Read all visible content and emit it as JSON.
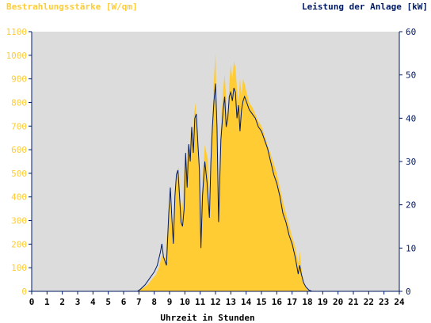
{
  "chart_data": {
    "type": "area",
    "left_axis_label": "Bestrahlungsstärke [W/qm]",
    "right_axis_label": "Leistung der Anlage [kW]",
    "xlabel": "Uhrzeit in Stunden",
    "x_ticks": [
      "0",
      "1",
      "2",
      "3",
      "4",
      "5",
      "6",
      "7",
      "8",
      "9",
      "10",
      "11",
      "12",
      "13",
      "14",
      "15",
      "16",
      "17",
      "18",
      "19",
      "20",
      "21",
      "22",
      "23",
      "24"
    ],
    "left_ticks": [
      "0",
      "100",
      "200",
      "300",
      "400",
      "500",
      "600",
      "700",
      "800",
      "900",
      "1000",
      "1100"
    ],
    "right_ticks": [
      "0",
      "10",
      "20",
      "30",
      "40",
      "50",
      "60"
    ],
    "xlim": [
      0,
      24
    ],
    "ylim_left": [
      0,
      1100
    ],
    "ylim_right": [
      0,
      60
    ],
    "grid": false,
    "series": [
      {
        "name": "Bestrahlungsstärke [W/qm]",
        "axis": "left",
        "color": "#ffcc33",
        "style": "filled-area",
        "points": [
          [
            0,
            0
          ],
          [
            6.8,
            0
          ],
          [
            7.0,
            5
          ],
          [
            7.3,
            15
          ],
          [
            7.6,
            30
          ],
          [
            7.9,
            55
          ],
          [
            8.1,
            70
          ],
          [
            8.3,
            100
          ],
          [
            8.5,
            150
          ],
          [
            8.7,
            140
          ],
          [
            8.9,
            280
          ],
          [
            9.0,
            400
          ],
          [
            9.1,
            330
          ],
          [
            9.2,
            220
          ],
          [
            9.35,
            430
          ],
          [
            9.5,
            500
          ],
          [
            9.6,
            530
          ],
          [
            9.7,
            400
          ],
          [
            9.8,
            340
          ],
          [
            9.9,
            400
          ],
          [
            10.0,
            560
          ],
          [
            10.1,
            480
          ],
          [
            10.2,
            620
          ],
          [
            10.3,
            560
          ],
          [
            10.4,
            700
          ],
          [
            10.5,
            600
          ],
          [
            10.6,
            750
          ],
          [
            10.7,
            800
          ],
          [
            10.8,
            650
          ],
          [
            10.9,
            560
          ],
          [
            11.0,
            300
          ],
          [
            11.15,
            470
          ],
          [
            11.3,
            620
          ],
          [
            11.5,
            560
          ],
          [
            11.6,
            300
          ],
          [
            11.8,
            740
          ],
          [
            11.9,
            900
          ],
          [
            12.0,
            1010
          ],
          [
            12.1,
            700
          ],
          [
            12.2,
            300
          ],
          [
            12.35,
            700
          ],
          [
            12.5,
            860
          ],
          [
            12.6,
            920
          ],
          [
            12.7,
            810
          ],
          [
            12.8,
            700
          ],
          [
            12.9,
            880
          ],
          [
            13.0,
            960
          ],
          [
            13.1,
            900
          ],
          [
            13.2,
            975
          ],
          [
            13.3,
            950
          ],
          [
            13.4,
            860
          ],
          [
            13.5,
            800
          ],
          [
            13.6,
            900
          ],
          [
            13.7,
            830
          ],
          [
            13.8,
            900
          ],
          [
            13.9,
            880
          ],
          [
            14.0,
            850
          ],
          [
            14.2,
            800
          ],
          [
            14.4,
            780
          ],
          [
            14.6,
            750
          ],
          [
            14.8,
            720
          ],
          [
            15.0,
            700
          ],
          [
            15.2,
            660
          ],
          [
            15.4,
            620
          ],
          [
            15.6,
            580
          ],
          [
            15.8,
            540
          ],
          [
            16.0,
            500
          ],
          [
            16.2,
            440
          ],
          [
            16.4,
            380
          ],
          [
            16.6,
            330
          ],
          [
            16.8,
            280
          ],
          [
            17.0,
            230
          ],
          [
            17.2,
            190
          ],
          [
            17.4,
            120
          ],
          [
            17.5,
            170
          ],
          [
            17.6,
            100
          ],
          [
            17.7,
            60
          ],
          [
            17.85,
            20
          ],
          [
            18.0,
            5
          ],
          [
            18.2,
            0
          ],
          [
            24,
            0
          ]
        ]
      },
      {
        "name": "Leistung der Anlage [kW]",
        "axis": "right",
        "color": "#001a66",
        "style": "line",
        "points": [
          [
            0,
            0
          ],
          [
            6.9,
            0
          ],
          [
            7.1,
            0.5
          ],
          [
            7.4,
            1.5
          ],
          [
            7.7,
            3
          ],
          [
            8.0,
            4.5
          ],
          [
            8.2,
            6
          ],
          [
            8.4,
            9
          ],
          [
            8.5,
            11
          ],
          [
            8.6,
            8
          ],
          [
            8.8,
            6
          ],
          [
            8.95,
            18
          ],
          [
            9.05,
            24
          ],
          [
            9.15,
            17
          ],
          [
            9.25,
            11
          ],
          [
            9.35,
            22
          ],
          [
            9.45,
            27
          ],
          [
            9.55,
            28
          ],
          [
            9.65,
            22
          ],
          [
            9.75,
            16
          ],
          [
            9.85,
            15
          ],
          [
            9.95,
            19
          ],
          [
            10.05,
            32
          ],
          [
            10.15,
            24
          ],
          [
            10.25,
            34
          ],
          [
            10.35,
            30
          ],
          [
            10.45,
            38
          ],
          [
            10.55,
            32
          ],
          [
            10.65,
            40
          ],
          [
            10.75,
            41
          ],
          [
            10.85,
            34
          ],
          [
            10.95,
            28
          ],
          [
            11.05,
            10
          ],
          [
            11.15,
            22
          ],
          [
            11.3,
            30
          ],
          [
            11.45,
            25
          ],
          [
            11.6,
            17
          ],
          [
            11.7,
            30
          ],
          [
            11.8,
            38
          ],
          [
            11.9,
            44
          ],
          [
            12.0,
            48
          ],
          [
            12.1,
            38
          ],
          [
            12.2,
            16
          ],
          [
            12.35,
            35
          ],
          [
            12.5,
            42
          ],
          [
            12.6,
            45
          ],
          [
            12.7,
            38
          ],
          [
            12.8,
            40
          ],
          [
            12.9,
            45
          ],
          [
            13.0,
            46
          ],
          [
            13.1,
            44
          ],
          [
            13.2,
            47
          ],
          [
            13.3,
            46
          ],
          [
            13.4,
            40
          ],
          [
            13.5,
            43
          ],
          [
            13.6,
            37
          ],
          [
            13.7,
            42
          ],
          [
            13.8,
            44
          ],
          [
            13.9,
            45
          ],
          [
            14.0,
            44
          ],
          [
            14.2,
            42
          ],
          [
            14.4,
            41
          ],
          [
            14.6,
            40
          ],
          [
            14.8,
            38
          ],
          [
            15.0,
            37
          ],
          [
            15.2,
            35
          ],
          [
            15.4,
            33
          ],
          [
            15.6,
            30
          ],
          [
            15.8,
            27
          ],
          [
            16.0,
            25
          ],
          [
            16.2,
            22
          ],
          [
            16.4,
            18
          ],
          [
            16.6,
            16
          ],
          [
            16.8,
            13
          ],
          [
            17.0,
            11
          ],
          [
            17.2,
            8
          ],
          [
            17.4,
            4
          ],
          [
            17.5,
            6
          ],
          [
            17.6,
            4
          ],
          [
            17.75,
            2
          ],
          [
            17.9,
            1
          ],
          [
            18.1,
            0.3
          ],
          [
            18.3,
            0
          ],
          [
            24,
            0
          ]
        ]
      }
    ]
  },
  "colors": {
    "plot_background": "#dcdcdc",
    "left_axis_text": "#ffcc33",
    "right_axis_text": "#001a66",
    "axis_line": "#001a66",
    "xlabel_text": "#000000"
  }
}
